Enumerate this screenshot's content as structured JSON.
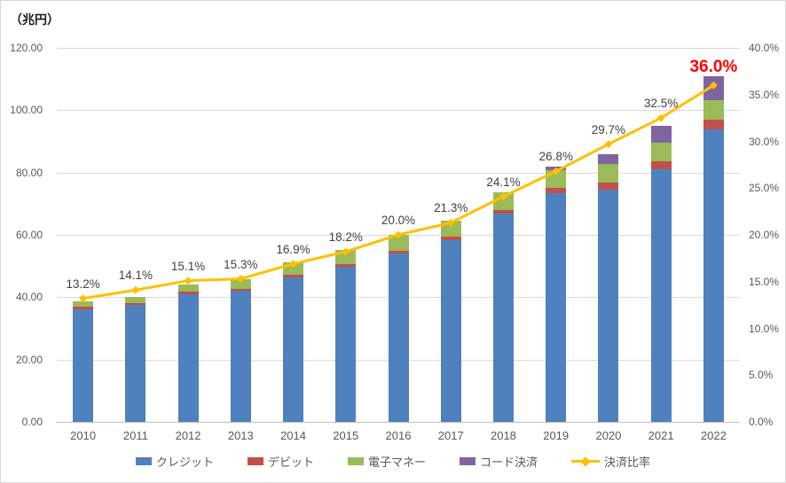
{
  "chart_data": {
    "type": "bar",
    "subtype": "stacked-bars-with-line-overlay",
    "unit_label": "（兆円）",
    "categories": [
      "2010",
      "2011",
      "2012",
      "2013",
      "2014",
      "2015",
      "2016",
      "2017",
      "2018",
      "2019",
      "2020",
      "2021",
      "2022"
    ],
    "series": [
      {
        "name": "クレジット",
        "kind": "bar",
        "color": "#4e81bd",
        "values": [
          36.2,
          37.4,
          41.0,
          42.0,
          46.3,
          49.8,
          53.9,
          58.4,
          66.7,
          73.4,
          74.5,
          81.0,
          93.8
        ]
      },
      {
        "name": "デビット",
        "kind": "bar",
        "color": "#c0504d",
        "values": [
          0.8,
          0.8,
          0.8,
          0.8,
          0.8,
          0.8,
          0.9,
          1.1,
          1.4,
          1.7,
          2.2,
          2.7,
          3.2
        ]
      },
      {
        "name": "電子マネー",
        "kind": "bar",
        "color": "#9bbb59",
        "values": [
          1.6,
          2.0,
          2.4,
          3.1,
          4.0,
          4.6,
          5.1,
          5.2,
          5.5,
          5.7,
          6.0,
          6.0,
          6.1
        ]
      },
      {
        "name": "コード決済",
        "kind": "bar",
        "color": "#8064a2",
        "values": [
          0,
          0,
          0,
          0,
          0,
          0,
          0,
          0,
          0.1,
          1.0,
          3.2,
          5.3,
          7.9
        ]
      },
      {
        "name": "決済比率",
        "kind": "line",
        "axis": "right",
        "color": "#ffc000",
        "values": [
          13.2,
          14.1,
          15.1,
          15.3,
          16.9,
          18.2,
          20.0,
          21.3,
          24.1,
          26.8,
          29.7,
          32.5,
          36.0
        ],
        "labels": [
          "13.2%",
          "14.1%",
          "15.1%",
          "15.3%",
          "16.9%",
          "18.2%",
          "20.0%",
          "21.3%",
          "24.1%",
          "26.8%",
          "29.7%",
          "32.5%",
          "36.0%"
        ],
        "highlight_last_label_color": "#ff0000"
      }
    ],
    "left_axis": {
      "min": 0,
      "max": 120,
      "step": 20,
      "tick_labels": [
        "120.00",
        "100.00",
        "80.00",
        "60.00",
        "40.00",
        "20.00",
        "0.00"
      ]
    },
    "right_axis": {
      "min": 0,
      "max": 40,
      "step": 5,
      "tick_labels": [
        "40.0%",
        "35.0%",
        "30.0%",
        "25.0%",
        "20.0%",
        "15.0%",
        "10.0%",
        "5.0%",
        "0.0%"
      ]
    },
    "grid": true,
    "legend_position": "bottom",
    "legend": [
      "クレジット",
      "デビット",
      "電子マネー",
      "コード決済",
      "決済比率"
    ]
  },
  "colors": {
    "background": "#ffffff",
    "grid": "#d9d9d9",
    "axis_line": "#bfbfbf",
    "tick_text": "#595959",
    "data_label_text": "#404040",
    "highlight_label": "#ff0000"
  }
}
